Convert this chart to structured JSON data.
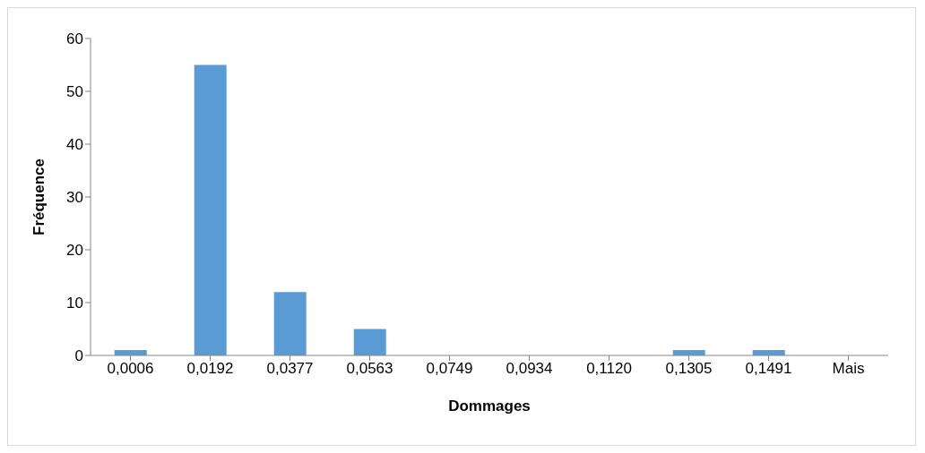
{
  "chart_data": {
    "type": "bar",
    "xlabel": "Dommages",
    "ylabel": "Fréquence",
    "categories": [
      "0,0006",
      "0,0192",
      "0,0377",
      "0,0563",
      "0,0749",
      "0,0934",
      "0,1120",
      "0,1305",
      "0,1491",
      "Mais"
    ],
    "values": [
      1,
      55,
      12,
      5,
      0,
      0,
      0,
      1,
      1,
      0
    ],
    "color": "#5b9bd5",
    "ylim": [
      0,
      60
    ],
    "yticks": [
      0,
      10,
      20,
      30,
      40,
      50,
      60
    ],
    "grid": false,
    "legend": false
  }
}
